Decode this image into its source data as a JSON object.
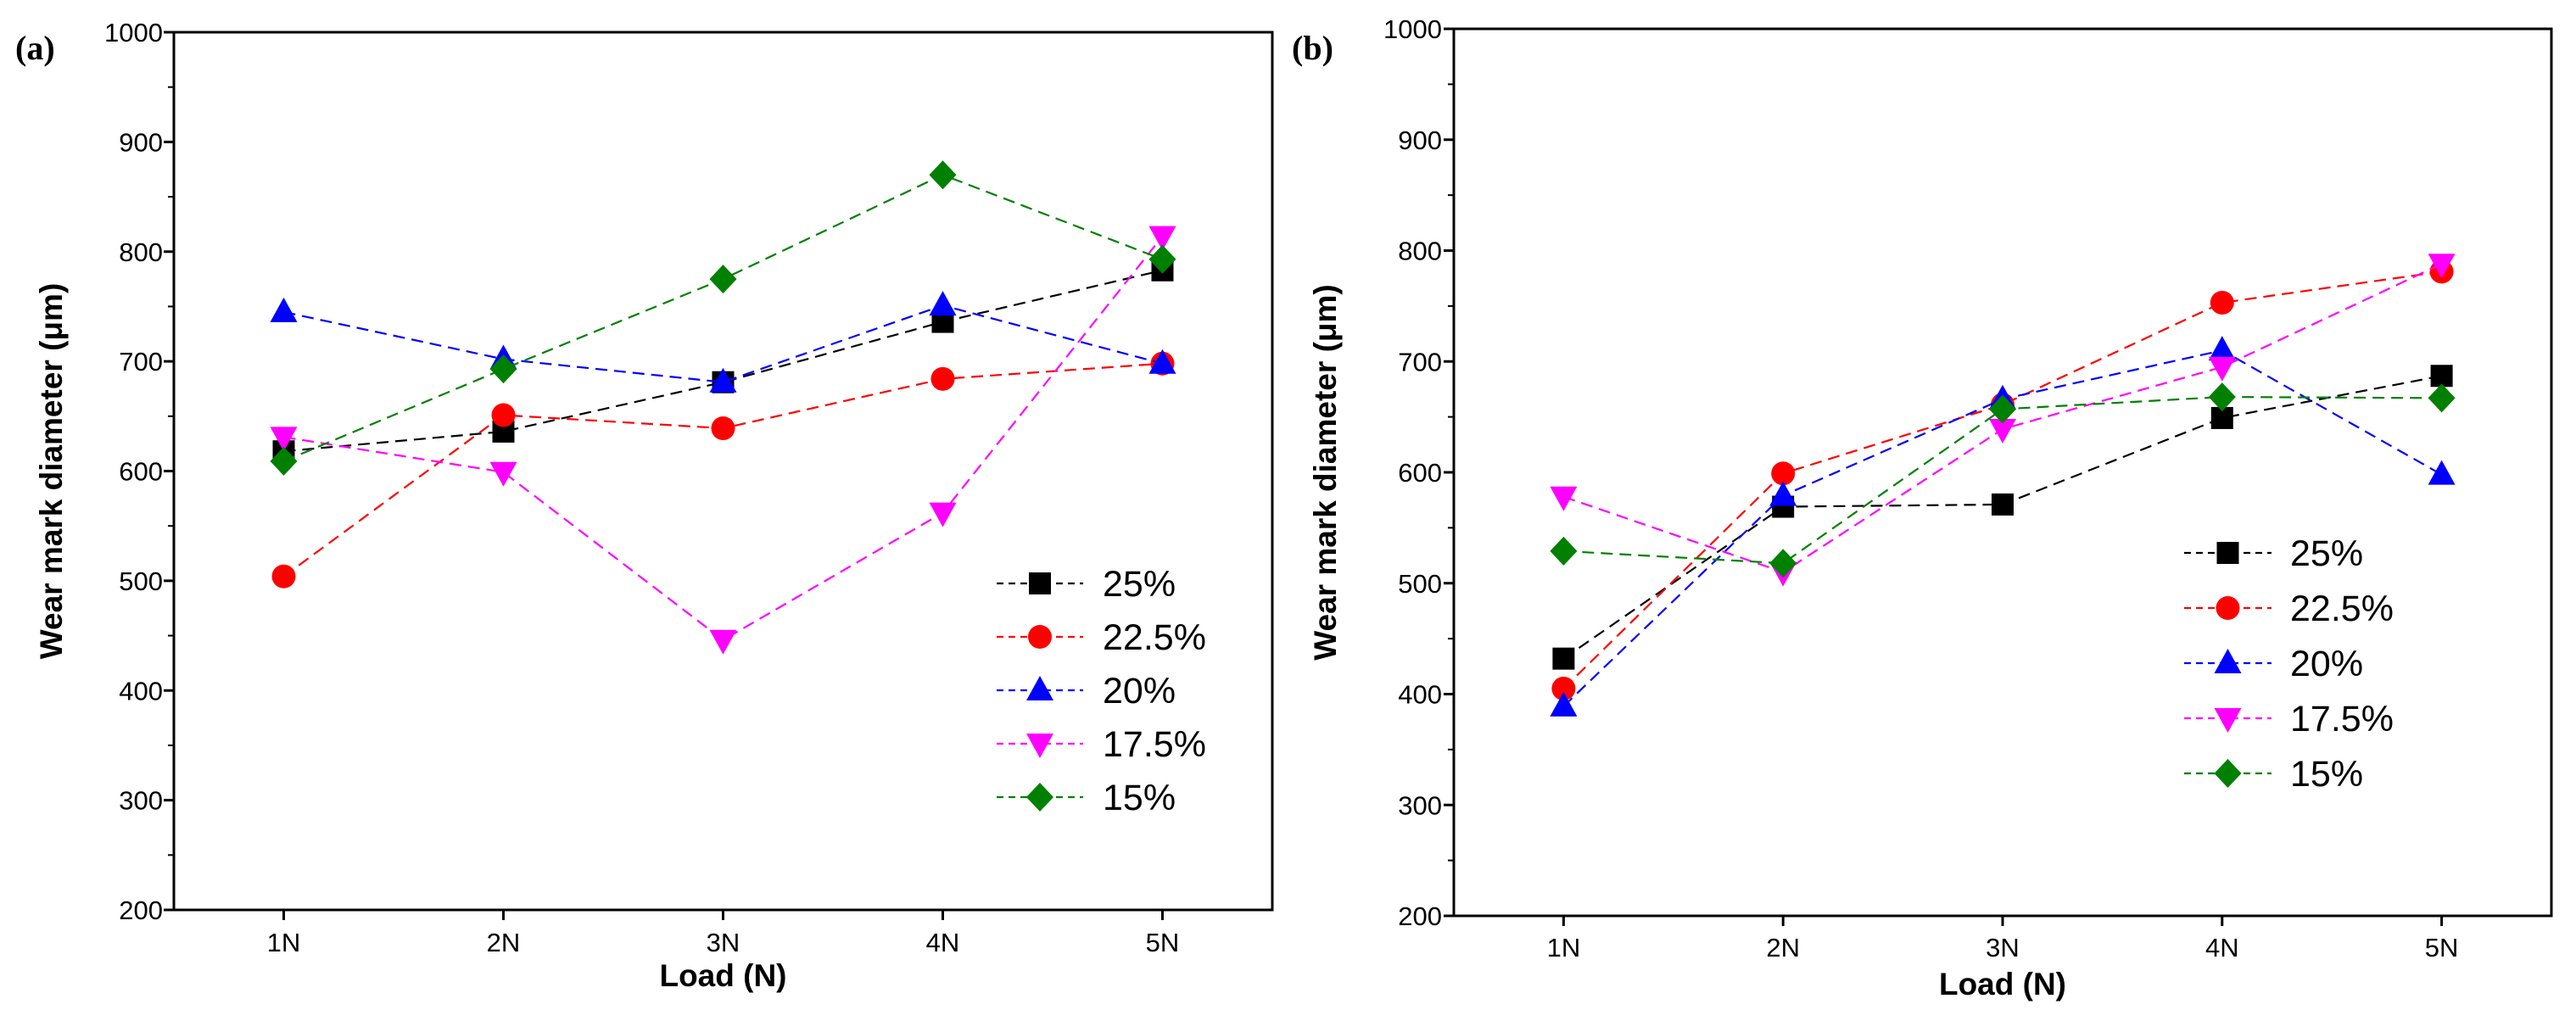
{
  "chart_data": [
    {
      "panel_label": "(a)",
      "type": "line",
      "xlabel": "Load (N)",
      "ylabel": "Wear mark diameter  (μm)",
      "categories": [
        "1N",
        "2N",
        "3N",
        "4N",
        "5N"
      ],
      "ylim": [
        200,
        1000
      ],
      "yticks": [
        "200",
        "300",
        "400",
        "500",
        "600",
        "700",
        "800",
        "900",
        "1000"
      ],
      "legend_position": "bottom-right",
      "series": [
        {
          "name": "25%",
          "marker": "square",
          "color": "#000000",
          "values": [
            618,
            636,
            681,
            736,
            783
          ]
        },
        {
          "name": "22.5%",
          "marker": "circle",
          "color": "#ff0000",
          "values": [
            504,
            651,
            639,
            684,
            698
          ]
        },
        {
          "name": "20%",
          "marker": "triangle-up",
          "color": "#0000ff",
          "values": [
            745,
            702,
            681,
            751,
            698
          ]
        },
        {
          "name": "17.5%",
          "marker": "triangle-down",
          "color": "#ff00ff",
          "values": [
            631,
            599,
            446,
            562,
            814
          ]
        },
        {
          "name": "15%",
          "marker": "diamond",
          "color": "#008000",
          "values": [
            609,
            693,
            775,
            870,
            793
          ]
        }
      ]
    },
    {
      "panel_label": "(b)",
      "type": "line",
      "xlabel": "Load (N)",
      "ylabel": "Wear mark diameter  (μm)",
      "categories": [
        "1N",
        "2N",
        "3N",
        "4N",
        "5N"
      ],
      "ylim": [
        200,
        1000
      ],
      "yticks": [
        "200",
        "300",
        "400",
        "500",
        "600",
        "700",
        "800",
        "900",
        "1000"
      ],
      "legend_position": "bottom-right",
      "series": [
        {
          "name": "25%",
          "marker": "square",
          "color": "#000000",
          "values": [
            432,
            569,
            571,
            649,
            687
          ]
        },
        {
          "name": "22.5%",
          "marker": "circle",
          "color": "#ff0000",
          "values": [
            405,
            599,
            661,
            753,
            781
          ]
        },
        {
          "name": "20%",
          "marker": "triangle-up",
          "color": "#0000ff",
          "values": [
            389,
            579,
            666,
            710,
            598
          ]
        },
        {
          "name": "17.5%",
          "marker": "triangle-down",
          "color": "#ff00ff",
          "values": [
            578,
            510,
            639,
            695,
            788
          ]
        },
        {
          "name": "15%",
          "marker": "diamond",
          "color": "#008000",
          "values": [
            529,
            518,
            657,
            668,
            667
          ]
        }
      ]
    }
  ]
}
